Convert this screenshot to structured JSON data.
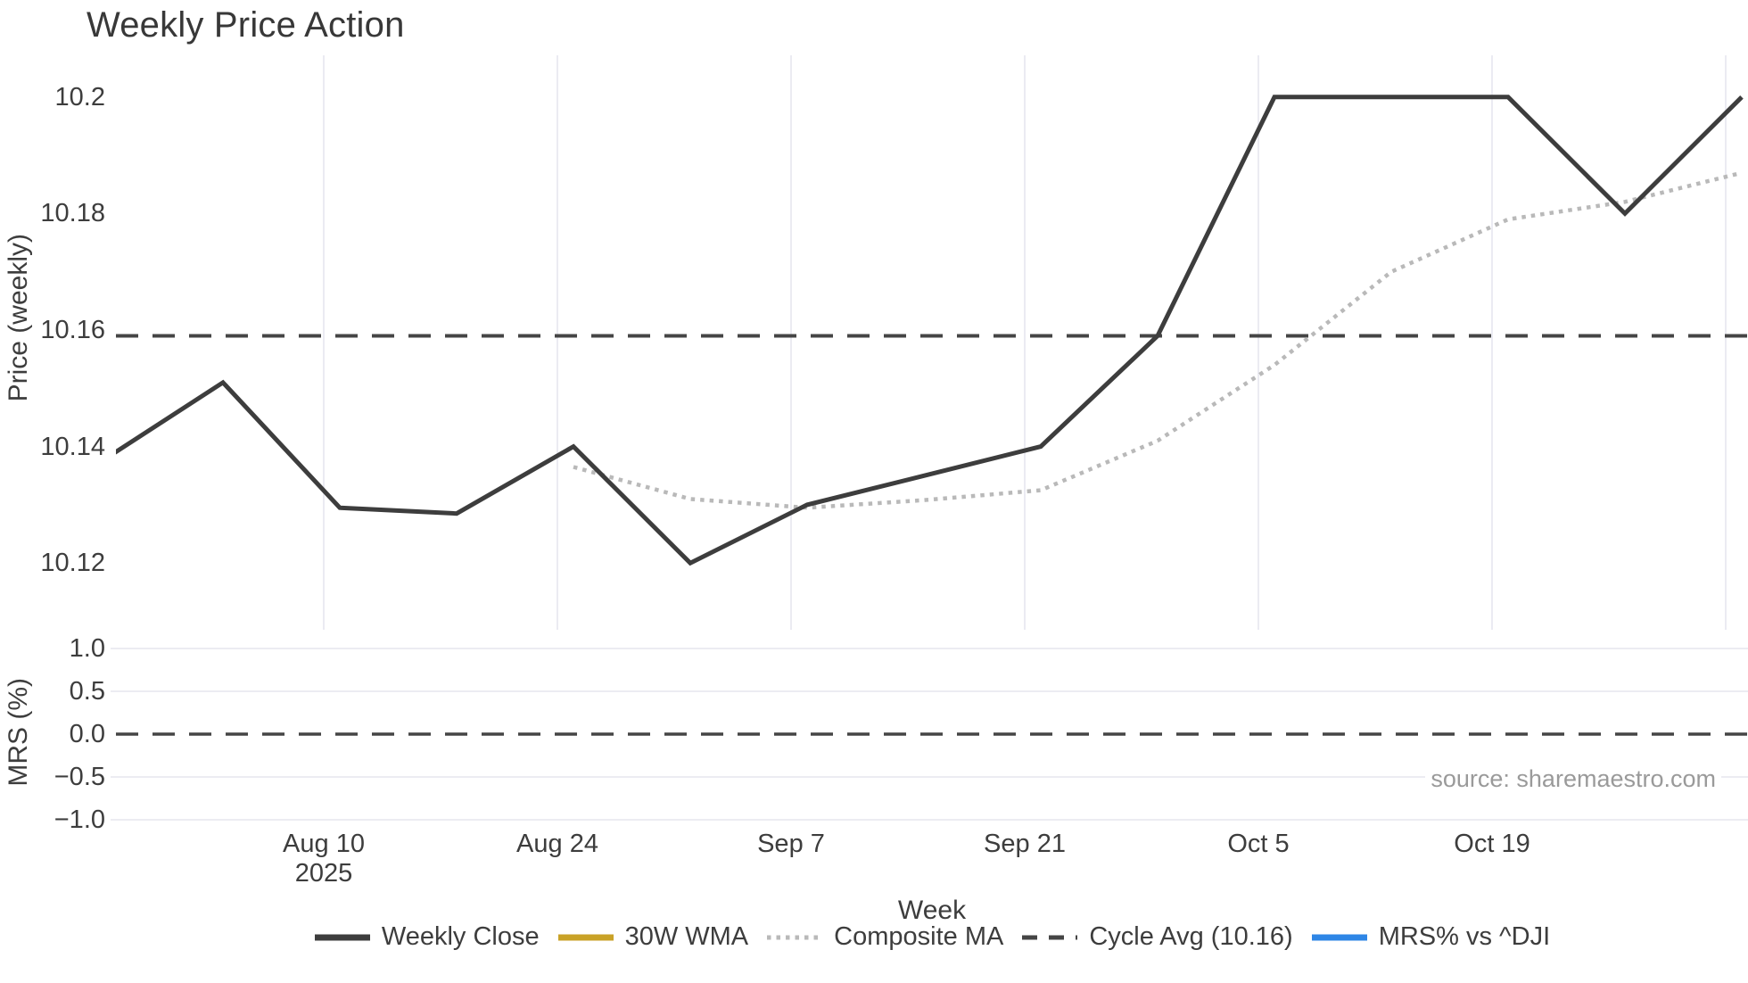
{
  "title": "Weekly Price Action",
  "source_label": "source: sharemaestro.com",
  "x_axis": {
    "title": "Week",
    "year_label": "2025"
  },
  "price_axis": {
    "title": "Price (weekly)",
    "tick_labels": [
      "10.2",
      "10.18",
      "10.16",
      "10.14",
      "10.12"
    ],
    "tick_values": [
      10.2,
      10.18,
      10.16,
      10.14,
      10.12
    ]
  },
  "mrs_axis": {
    "title": "MRS (%)",
    "tick_labels": [
      "1.0",
      "0.5",
      "0.0",
      "−0.5",
      "−1.0"
    ],
    "tick_values": [
      1.0,
      0.5,
      0.0,
      -0.5,
      -1.0
    ]
  },
  "legend": {
    "items": [
      {
        "label": "Weekly Close",
        "color": "#3d3d3d",
        "style": "solid"
      },
      {
        "label": "30W WMA",
        "color": "#c9a227",
        "style": "solid"
      },
      {
        "label": "Composite MA",
        "color": "#b9b9b9",
        "style": "dotted"
      },
      {
        "label": "Cycle Avg (10.16)",
        "color": "#454545",
        "style": "dashed"
      },
      {
        "label": "MRS% vs ^DJI",
        "color": "#2e86e6",
        "style": "solid"
      }
    ]
  },
  "chart_data": [
    {
      "type": "line",
      "title": "Weekly Price Action",
      "xlabel": "Week",
      "ylabel": "Price (weekly)",
      "grid": "vertical-only",
      "legend_position": "bottom",
      "ylim": [
        10.108,
        10.207
      ],
      "x": [
        "2025-07-27",
        "2025-08-03",
        "2025-08-10",
        "2025-08-17",
        "2025-08-24",
        "2025-08-31",
        "2025-09-07",
        "2025-09-14",
        "2025-09-21",
        "2025-09-28",
        "2025-10-05",
        "2025-10-12",
        "2025-10-19",
        "2025-10-26",
        "2025-11-02"
      ],
      "x_ticks": [
        {
          "label": "Aug 10",
          "sublabel": "2025",
          "index": 2
        },
        {
          "label": "Aug 24",
          "index": 4
        },
        {
          "label": "Sep 7",
          "index": 6
        },
        {
          "label": "Sep 21",
          "index": 8
        },
        {
          "label": "Oct 5",
          "index": 10
        },
        {
          "label": "Oct 19",
          "index": 12
        },
        {
          "label": "",
          "index": 14
        }
      ],
      "series": [
        {
          "name": "Weekly Close",
          "color": "#3d3d3d",
          "style": "solid",
          "width": 5,
          "values": [
            10.138,
            10.151,
            10.1295,
            10.1285,
            10.14,
            10.12,
            10.13,
            10.135,
            10.14,
            10.159,
            10.2,
            10.2,
            10.2,
            10.18,
            10.2
          ]
        },
        {
          "name": "30W WMA",
          "color": "#c9a227",
          "style": "solid",
          "width": 5,
          "values": []
        },
        {
          "name": "Composite MA",
          "color": "#b9b9b9",
          "style": "dotted",
          "width": 4.5,
          "values": [
            null,
            null,
            null,
            null,
            10.1365,
            10.131,
            10.1295,
            10.1308,
            10.1325,
            10.141,
            10.154,
            10.17,
            10.179,
            10.182,
            10.187
          ]
        },
        {
          "name": "Cycle Avg (10.16)",
          "color": "#454545",
          "style": "dashed",
          "width": 4,
          "constant": 10.159
        }
      ]
    },
    {
      "type": "line",
      "xlabel": "Week",
      "ylabel": "MRS (%)",
      "grid": "horizontal-only",
      "ylim": [
        -1.22,
        1.16
      ],
      "series": [
        {
          "name": "MRS% vs ^DJI",
          "color": "#2e86e6",
          "style": "solid",
          "width": 4,
          "values": []
        },
        {
          "name": "Zero line",
          "color": "#454545",
          "style": "dashed",
          "width": 3.5,
          "constant": 0
        }
      ]
    }
  ]
}
